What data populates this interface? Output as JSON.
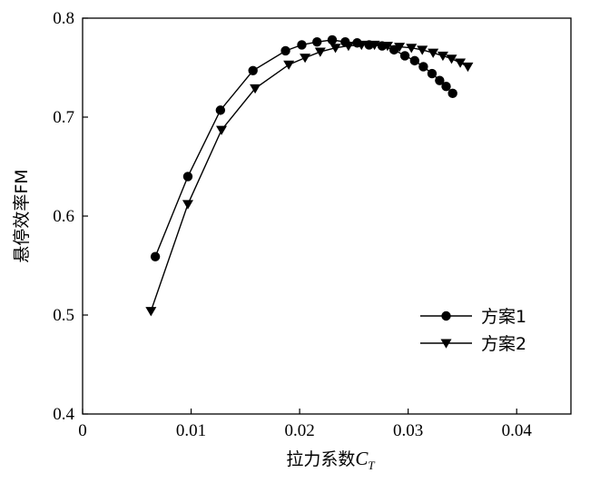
{
  "chart_data": {
    "type": "line",
    "title": "",
    "xlabel": "拉力系数",
    "xlabel_symbol": "C",
    "xlabel_subscript": "T",
    "ylabel": "悬停效率FM",
    "xlim": [
      0,
      0.045
    ],
    "ylim": [
      0.4,
      0.8
    ],
    "xticks": [
      0,
      0.01,
      0.02,
      0.03,
      0.04
    ],
    "xtick_labels": [
      "0",
      "0.01",
      "0.02",
      "0.03",
      "0.04"
    ],
    "yticks": [
      0.4,
      0.5,
      0.6,
      0.7,
      0.8
    ],
    "ytick_labels": [
      "0.4",
      "0.5",
      "0.6",
      "0.7",
      "0.8"
    ],
    "grid": false,
    "legend_position": "lower-right",
    "series": [
      {
        "name": "方案1",
        "marker": "circle",
        "color": "#000000",
        "points": [
          [
            0.0067,
            0.559
          ],
          [
            0.0097,
            0.64
          ],
          [
            0.0127,
            0.707
          ],
          [
            0.0157,
            0.747
          ],
          [
            0.0187,
            0.767
          ],
          [
            0.0202,
            0.773
          ],
          [
            0.0216,
            0.776
          ],
          [
            0.023,
            0.778
          ],
          [
            0.0242,
            0.776
          ],
          [
            0.0253,
            0.775
          ],
          [
            0.0264,
            0.773
          ],
          [
            0.0276,
            0.772
          ],
          [
            0.0287,
            0.768
          ],
          [
            0.0297,
            0.762
          ],
          [
            0.0306,
            0.757
          ],
          [
            0.0314,
            0.751
          ],
          [
            0.0322,
            0.744
          ],
          [
            0.0329,
            0.737
          ],
          [
            0.0335,
            0.731
          ],
          [
            0.0341,
            0.724
          ]
        ]
      },
      {
        "name": "方案2",
        "marker": "triangle-down",
        "color": "#000000",
        "points": [
          [
            0.0063,
            0.504
          ],
          [
            0.0097,
            0.612
          ],
          [
            0.0128,
            0.687
          ],
          [
            0.0159,
            0.729
          ],
          [
            0.019,
            0.753
          ],
          [
            0.0205,
            0.76
          ],
          [
            0.0219,
            0.766
          ],
          [
            0.0233,
            0.77
          ],
          [
            0.0245,
            0.772
          ],
          [
            0.0257,
            0.773
          ],
          [
            0.0269,
            0.773
          ],
          [
            0.0281,
            0.772
          ],
          [
            0.0292,
            0.771
          ],
          [
            0.0303,
            0.77
          ],
          [
            0.0313,
            0.768
          ],
          [
            0.0323,
            0.765
          ],
          [
            0.0332,
            0.762
          ],
          [
            0.034,
            0.759
          ],
          [
            0.0348,
            0.755
          ],
          [
            0.0355,
            0.751
          ]
        ]
      }
    ]
  }
}
